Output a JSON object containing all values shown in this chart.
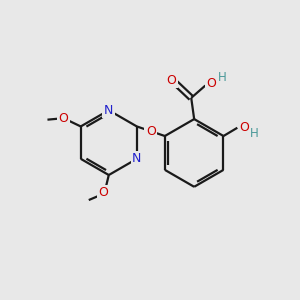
{
  "background_color": "#e8e8e8",
  "bond_color": "#1a1a1a",
  "nitrogen_color": "#2020cc",
  "oxygen_color": "#cc0000",
  "hydrogen_color": "#4a9999",
  "carbon_color": "#1a1a1a",
  "figsize": [
    3.0,
    3.0
  ],
  "dpi": 100,
  "xlim": [
    0,
    10
  ],
  "ylim": [
    0,
    10
  ]
}
